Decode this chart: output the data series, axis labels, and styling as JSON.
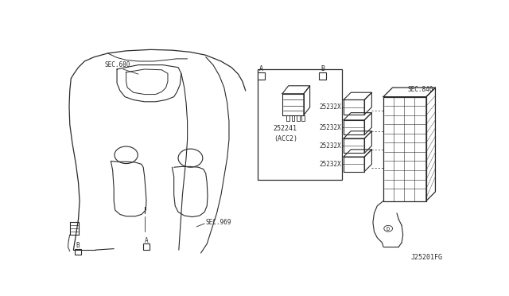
{
  "bg_color": "#ffffff",
  "fig_code": "J25201FG",
  "line_color": "#2a2a2a",
  "text_color": "#2a2a2a",
  "lw": 0.7,
  "labels": {
    "sec_680": "SEC.680",
    "sec_969": "SEC.969",
    "sec_840": "SEC.840",
    "acc2": "(ACC2)",
    "part_252241": "252241",
    "relay": "25232X",
    "box_A": "A",
    "box_B": "B"
  }
}
